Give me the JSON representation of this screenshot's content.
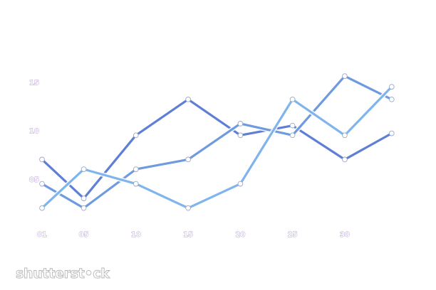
{
  "chart_data": {
    "type": "line",
    "title": "",
    "xlabel": "",
    "ylabel": "",
    "x_ticks": [
      "01",
      "05",
      "10",
      "15",
      "20",
      "25",
      "30"
    ],
    "y_ticks": [
      "05",
      "10",
      "15"
    ],
    "xlim": [
      1,
      30
    ],
    "ylim": [
      0,
      16
    ],
    "grid": false,
    "legend": "none",
    "series": [
      {
        "color": "#5f7fd6",
        "points": [
          [
            1,
            7
          ],
          [
            5,
            3
          ],
          [
            10,
            9.5
          ],
          [
            15,
            13.2
          ],
          [
            20,
            9.5
          ],
          [
            25,
            10.5
          ],
          [
            30,
            7
          ],
          [
            34.5,
            9.7
          ]
        ]
      },
      {
        "color": "#6f9ae0",
        "points": [
          [
            1,
            4.5
          ],
          [
            5,
            2
          ],
          [
            10,
            6
          ],
          [
            15,
            7
          ],
          [
            20,
            10.7
          ],
          [
            25,
            9.5
          ],
          [
            30,
            15.6
          ],
          [
            34.5,
            13.2
          ]
        ]
      },
      {
        "color": "#7fb4ec",
        "points": [
          [
            1,
            2
          ],
          [
            5,
            6
          ],
          [
            10,
            4.5
          ],
          [
            15,
            2
          ],
          [
            20,
            4.5
          ],
          [
            25,
            13.2
          ],
          [
            30,
            9.5
          ],
          [
            34.5,
            14.5
          ]
        ]
      }
    ]
  },
  "watermark": "shutterst•ck"
}
